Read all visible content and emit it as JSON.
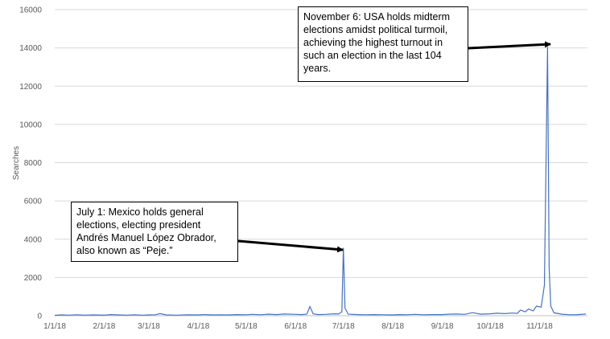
{
  "chart_data": {
    "type": "line",
    "ylabel": "Searches",
    "xlabel": "",
    "ylim": [
      0,
      16000
    ],
    "yticks": [
      "0",
      "2000",
      "4000",
      "6000",
      "8000",
      "10000",
      "12000",
      "14000",
      "16000"
    ],
    "xticks": [
      "1/1/18",
      "2/1/18",
      "3/1/18",
      "4/1/18",
      "5/1/18",
      "6/1/18",
      "7/1/18",
      "8/1/18",
      "9/1/18",
      "10/1/18",
      "11/1/18"
    ],
    "line_color": "#4472c4",
    "grid": true,
    "series": [
      {
        "points": [
          [
            "2018-01-01",
            20
          ],
          [
            "2018-01-05",
            40
          ],
          [
            "2018-01-10",
            30
          ],
          [
            "2018-01-15",
            50
          ],
          [
            "2018-01-20",
            30
          ],
          [
            "2018-01-25",
            40
          ],
          [
            "2018-02-01",
            30
          ],
          [
            "2018-02-05",
            60
          ],
          [
            "2018-02-10",
            40
          ],
          [
            "2018-02-15",
            30
          ],
          [
            "2018-02-20",
            50
          ],
          [
            "2018-02-25",
            30
          ],
          [
            "2018-03-01",
            40
          ],
          [
            "2018-03-05",
            50
          ],
          [
            "2018-03-08",
            110
          ],
          [
            "2018-03-12",
            40
          ],
          [
            "2018-03-18",
            30
          ],
          [
            "2018-03-25",
            50
          ],
          [
            "2018-04-01",
            40
          ],
          [
            "2018-04-05",
            60
          ],
          [
            "2018-04-10",
            40
          ],
          [
            "2018-04-15",
            50
          ],
          [
            "2018-04-20",
            40
          ],
          [
            "2018-04-25",
            60
          ],
          [
            "2018-05-01",
            50
          ],
          [
            "2018-05-05",
            70
          ],
          [
            "2018-05-10",
            50
          ],
          [
            "2018-05-15",
            80
          ],
          [
            "2018-05-20",
            60
          ],
          [
            "2018-05-25",
            90
          ],
          [
            "2018-06-01",
            70
          ],
          [
            "2018-06-05",
            60
          ],
          [
            "2018-06-08",
            80
          ],
          [
            "2018-06-10",
            480
          ],
          [
            "2018-06-12",
            100
          ],
          [
            "2018-06-15",
            60
          ],
          [
            "2018-06-20",
            70
          ],
          [
            "2018-06-25",
            100
          ],
          [
            "2018-06-28",
            90
          ],
          [
            "2018-06-30",
            200
          ],
          [
            "2018-07-01",
            3550
          ],
          [
            "2018-07-02",
            400
          ],
          [
            "2018-07-04",
            80
          ],
          [
            "2018-07-10",
            60
          ],
          [
            "2018-07-15",
            50
          ],
          [
            "2018-07-20",
            60
          ],
          [
            "2018-07-25",
            50
          ],
          [
            "2018-08-01",
            40
          ],
          [
            "2018-08-05",
            60
          ],
          [
            "2018-08-10",
            50
          ],
          [
            "2018-08-15",
            70
          ],
          [
            "2018-08-20",
            50
          ],
          [
            "2018-08-25",
            60
          ],
          [
            "2018-09-01",
            60
          ],
          [
            "2018-09-05",
            80
          ],
          [
            "2018-09-10",
            90
          ],
          [
            "2018-09-15",
            70
          ],
          [
            "2018-09-20",
            160
          ],
          [
            "2018-09-25",
            80
          ],
          [
            "2018-10-01",
            100
          ],
          [
            "2018-10-05",
            130
          ],
          [
            "2018-10-10",
            110
          ],
          [
            "2018-10-15",
            140
          ],
          [
            "2018-10-18",
            120
          ],
          [
            "2018-10-20",
            300
          ],
          [
            "2018-10-23",
            200
          ],
          [
            "2018-10-25",
            350
          ],
          [
            "2018-10-28",
            250
          ],
          [
            "2018-10-30",
            500
          ],
          [
            "2018-11-02",
            450
          ],
          [
            "2018-11-04",
            1600
          ],
          [
            "2018-11-06",
            14050
          ],
          [
            "2018-11-07",
            2500
          ],
          [
            "2018-11-08",
            500
          ],
          [
            "2018-11-10",
            150
          ],
          [
            "2018-11-15",
            80
          ],
          [
            "2018-11-20",
            50
          ],
          [
            "2018-11-25",
            60
          ],
          [
            "2018-11-30",
            90
          ]
        ]
      }
    ],
    "annotations": [
      {
        "text": "November 6: USA holds midterm elections amidst political turmoil, achieving the highest turnout in such an election in the last 104 years.",
        "x": "2018-11-06",
        "y": 14050
      },
      {
        "text": "July 1: Mexico holds general elections, electing president Andrés Manuel López Obrador, also known as “Peje.”",
        "x": "2018-07-01",
        "y": 3550
      }
    ]
  }
}
